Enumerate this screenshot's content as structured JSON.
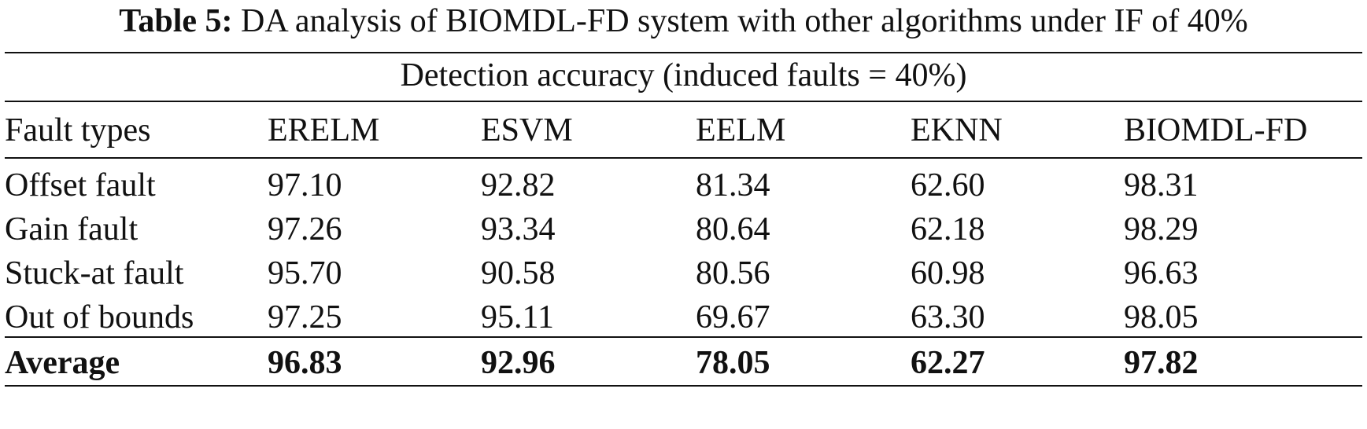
{
  "table": {
    "caption_label": "Table 5:",
    "caption_text": "DA analysis of BIOMDL-FD system with other algorithms under IF of 40%",
    "spanning_header": "Detection accuracy (induced faults = 40%)",
    "columns": [
      "Fault types",
      "ERELM",
      "ESVM",
      "EELM",
      "EKNN",
      "BIOMDL-FD"
    ],
    "rows": [
      [
        "Offset fault",
        "97.10",
        "92.82",
        "81.34",
        "62.60",
        "98.31"
      ],
      [
        "Gain fault",
        "97.26",
        "93.34",
        "80.64",
        "62.18",
        "98.29"
      ],
      [
        "Stuck-at fault",
        "95.70",
        "90.58",
        "80.56",
        "60.98",
        "96.63"
      ],
      [
        "Out of bounds",
        "97.25",
        "95.11",
        "69.67",
        "63.30",
        "98.05"
      ]
    ],
    "average": [
      "Average",
      "96.83",
      "92.96",
      "78.05",
      "62.27",
      "97.82"
    ]
  }
}
